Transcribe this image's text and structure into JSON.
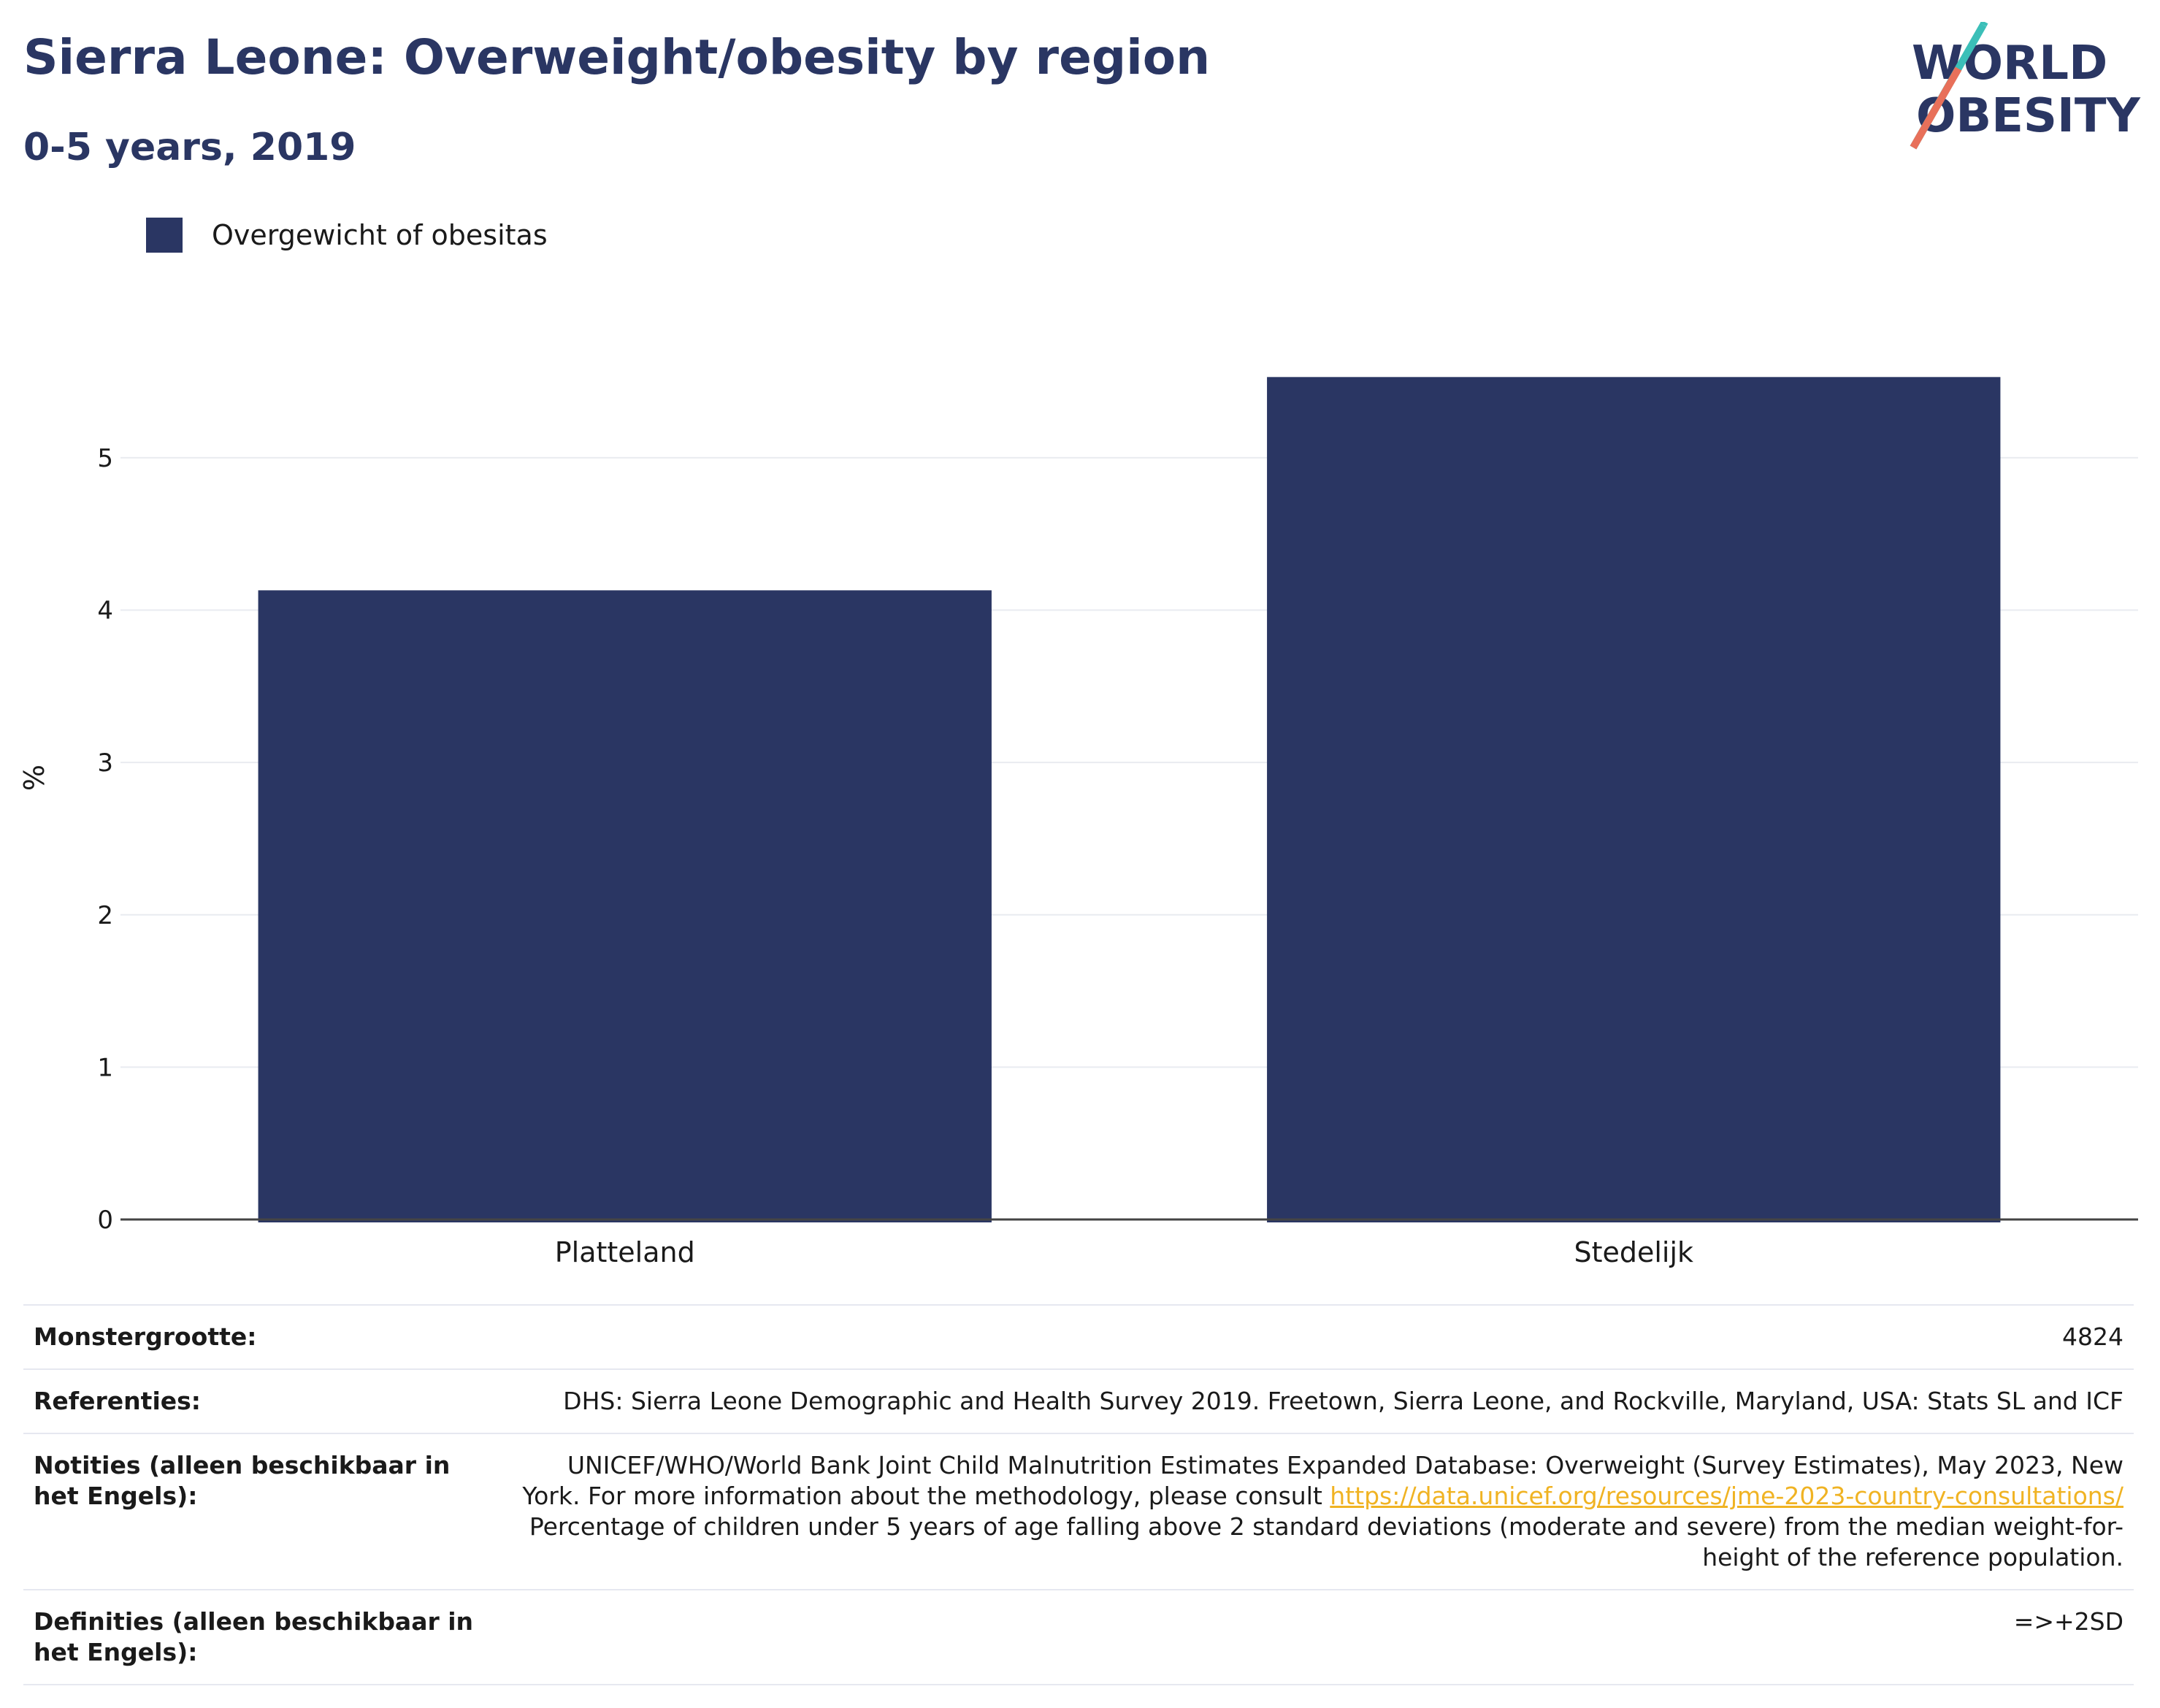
{
  "header": {
    "title": "Sierra Leone: Overweight/obesity by region",
    "subtitle": "0-5 years, 2019"
  },
  "logo": {
    "line1": "WORLD",
    "line2": "OBESITY"
  },
  "legend": {
    "label": "Overgewicht of obesitas",
    "color": "#2a3663"
  },
  "chart_data": {
    "type": "bar",
    "categories": [
      "Platteland",
      "Stedelijk"
    ],
    "series": [
      {
        "name": "Overgewicht of obesitas",
        "values": [
          4.13,
          5.53
        ]
      }
    ],
    "ylabel": "%",
    "ylim": [
      0,
      5.8
    ],
    "yticks": [
      0,
      1,
      2,
      3,
      4,
      5
    ],
    "grid": true,
    "legend_position": "top-left",
    "bar_color": "#2a3663"
  },
  "meta": {
    "sample_size_label": "Monstergrootte:",
    "sample_size_value": "4824",
    "references_label": "Referenties:",
    "references_value": "DHS: Sierra Leone Demographic and Health Survey 2019. Freetown, Sierra Leone, and Rockville, Maryland, USA: Stats SL and ICF",
    "notes_label": "Notities (alleen beschikbaar in het Engels):",
    "notes_text_1": "UNICEF/WHO/World Bank Joint Child Malnutrition Estimates Expanded Database: Overweight (Survey Estimates), May 2023, New York. For more information about the methodology, please consult ",
    "notes_link": "https://data.unicef.org/resources/jme-2023-country-consultations/",
    "notes_text_2": "Percentage of children under 5 years of age falling above 2 standard deviations (moderate and severe) from the median weight-for-height of the reference population.",
    "definitions_label": "Definities (alleen beschikbaar in het Engels):",
    "definitions_value": "=>+2SD"
  }
}
